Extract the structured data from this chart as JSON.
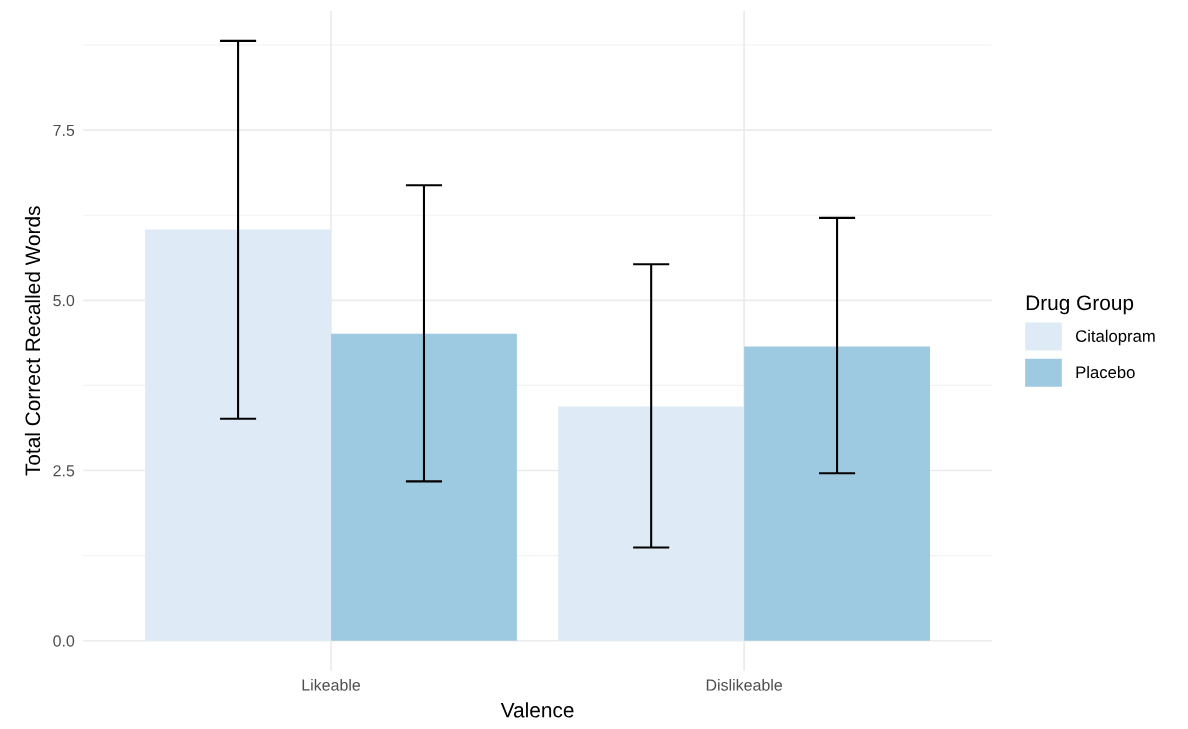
{
  "chart_data": {
    "type": "bar",
    "xlabel": "Valence",
    "ylabel": "Total Correct Recalled Words",
    "legend_title": "Drug Group",
    "categories": [
      "Likeable",
      "Dislikeable"
    ],
    "series": [
      {
        "name": "Citalopram",
        "color": "#deebf7",
        "values": [
          6.04,
          3.44
        ],
        "errors": [
          [
            3.26,
            8.81
          ],
          [
            1.37,
            5.53
          ]
        ]
      },
      {
        "name": "Placebo",
        "color": "#9ecae1",
        "values": [
          4.51,
          4.32
        ],
        "errors": [
          [
            2.34,
            6.69
          ],
          [
            2.46,
            6.21
          ]
        ]
      }
    ],
    "ylim": [
      -0.44,
      9.25
    ],
    "yticks": [
      {
        "value": 0,
        "label": "0.0"
      },
      {
        "value": 2.5,
        "label": "2.5"
      },
      {
        "value": 5,
        "label": "5.0"
      },
      {
        "value": 7.5,
        "label": "7.5"
      }
    ],
    "grid": true,
    "legend": "right"
  }
}
